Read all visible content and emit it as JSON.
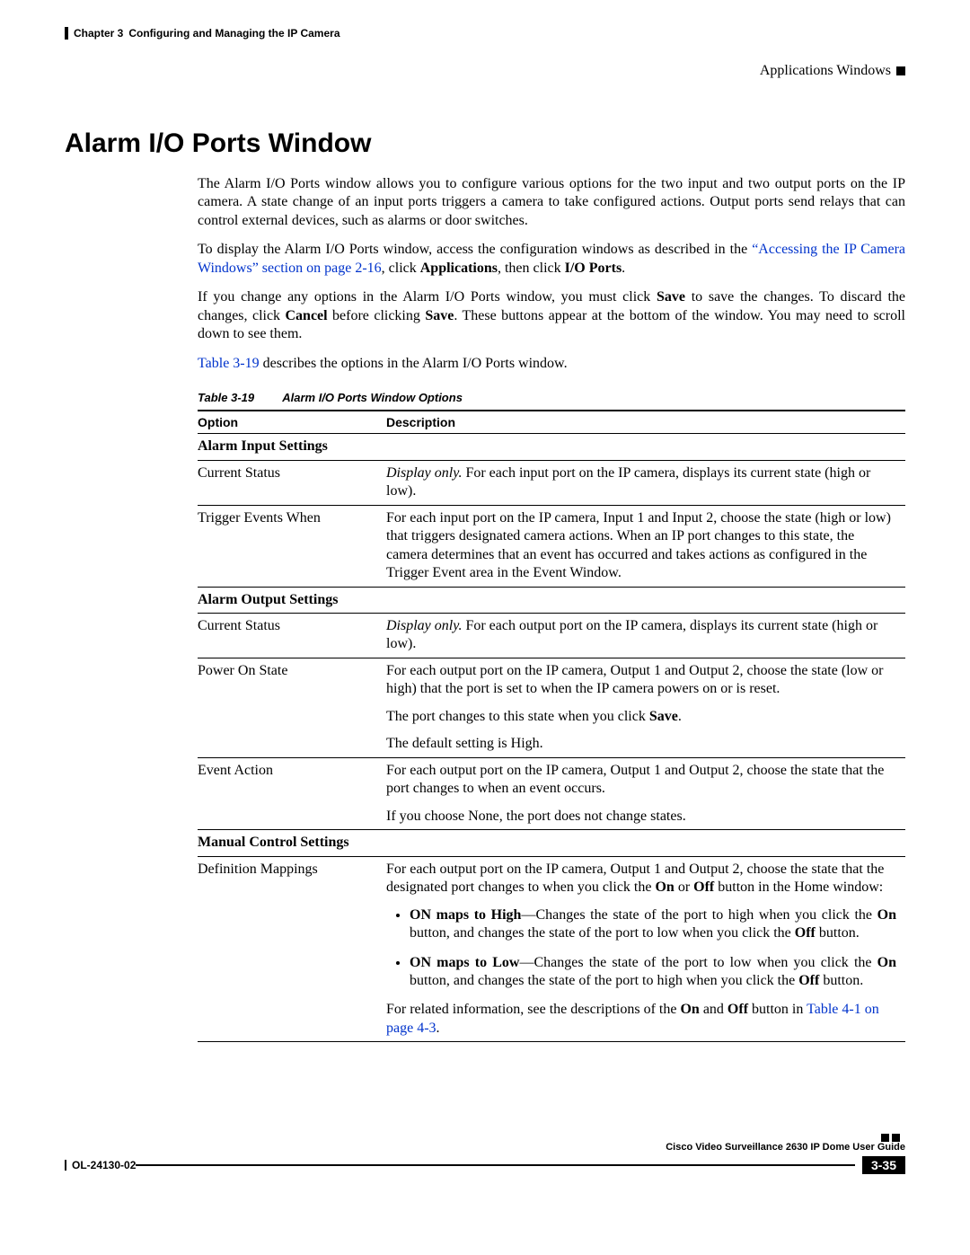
{
  "header": {
    "chapter_label": "Chapter 3",
    "chapter_title": "Configuring and Managing the IP Camera",
    "section_label": "Applications Windows"
  },
  "title": "Alarm I/O Ports Window",
  "intro": {
    "p1": "The Alarm I/O Ports window allows you to configure various options for the two input and two output ports on the IP camera. A state change of an input ports triggers a camera to take configured actions. Output ports send relays that can control external devices, such as alarms or door switches.",
    "p2_a": "To display the Alarm I/O Ports window, access the configuration windows as described in the ",
    "p2_link": "“Accessing the IP Camera Windows” section on page 2-16",
    "p2_b": ", click ",
    "p2_bold1": "Applications",
    "p2_c": ", then click ",
    "p2_bold2": "I/O Ports",
    "p2_d": ".",
    "p3_a": "If you change any options in the Alarm I/O Ports window, you must click ",
    "p3_bold1": "Save",
    "p3_b": " to save the changes. To discard the changes, click ",
    "p3_bold2": "Cancel",
    "p3_c": " before clicking ",
    "p3_bold3": "Save",
    "p3_d": ". These buttons appear at the bottom of the window. You may need to scroll down to see them.",
    "p4_link": "Table 3-19",
    "p4_rest": " describes the options in the Alarm I/O Ports window."
  },
  "table": {
    "caption_num": "Table 3-19",
    "caption_title": "Alarm I/O Ports Window Options",
    "header_option": "Option",
    "header_description": "Description",
    "section1": "Alarm Input Settings",
    "r1_opt": "Current Status",
    "r1_desc_italic": "Display only.",
    "r1_desc_rest": " For each input port on the IP camera, displays its current state (high or low).",
    "r2_opt": "Trigger Events When",
    "r2_desc": "For each input port on the IP camera, Input 1 and Input 2, choose the state (high or low) that triggers designated camera actions. When an IP port changes to this state, the camera determines that an event has occurred and takes actions as configured in the Trigger Event area in the Event Window.",
    "section2": "Alarm Output Settings",
    "r3_opt": "Current Status",
    "r3_desc_italic": "Display only.",
    "r3_desc_rest": " For each output port on the IP camera, displays its current state (high or low).",
    "r4_opt": "Power On State",
    "r4_p1": "For each output port on the IP camera, Output 1 and Output 2, choose the state (low or high) that the port is set to when the IP camera powers on or is reset.",
    "r4_p2_a": "The port changes to this state when you click ",
    "r4_p2_bold": "Save",
    "r4_p2_b": ".",
    "r4_p3": "The default setting is High.",
    "r5_opt": "Event Action",
    "r5_p1": "For each output port on the IP camera, Output 1 and Output 2, choose the state that the port changes to when an event occurs.",
    "r5_p2": "If you choose None, the port does not change states.",
    "section3": "Manual Control Settings",
    "r6_opt": "Definition Mappings",
    "r6_p1_a": "For each output port on the IP camera, Output 1 and Output 2, choose the state that the designated port changes to when you click the ",
    "r6_p1_bold1": "On",
    "r6_p1_b": " or ",
    "r6_p1_bold2": "Off",
    "r6_p1_c": " button in the Home window:",
    "r6_li1_bold": "ON maps to High",
    "r6_li1_a": "—Changes the state of the port to high when you click the ",
    "r6_li1_bold2": "On",
    "r6_li1_b": " button, and changes the state of the port to low when you click the ",
    "r6_li1_bold3": "Off",
    "r6_li1_c": " button.",
    "r6_li2_bold": "ON maps to Low",
    "r6_li2_a": "—Changes the state of the port to low when you click the ",
    "r6_li2_bold2": "On",
    "r6_li2_b": " button, and changes the state of the port to high when you click the ",
    "r6_li2_bold3": "Off",
    "r6_li2_c": " button.",
    "r6_p2_a": "For related information, see the descriptions of the ",
    "r6_p2_bold1": "On",
    "r6_p2_b": " and ",
    "r6_p2_bold2": "Off",
    "r6_p2_c": " button in ",
    "r6_p2_link": "Table 4-1 on page 4-3",
    "r6_p2_d": "."
  },
  "footer": {
    "book_title": "Cisco Video Surveillance 2630 IP Dome User Guide",
    "doc_id": "OL-24130-02",
    "page_num": "3-35"
  },
  "colors": {
    "link": "#0033cc",
    "text": "#000000",
    "bg": "#ffffff"
  }
}
